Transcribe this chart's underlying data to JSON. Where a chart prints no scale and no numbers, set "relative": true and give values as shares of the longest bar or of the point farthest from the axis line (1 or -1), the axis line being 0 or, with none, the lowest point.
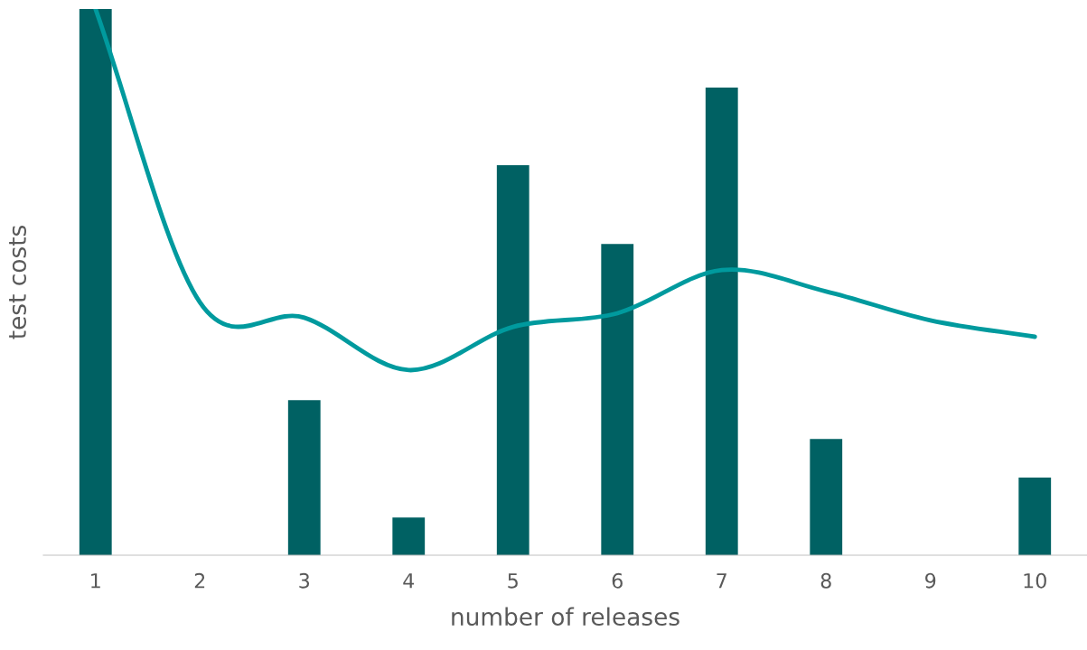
{
  "chart_data": {
    "type": "bar",
    "relative": true,
    "xlabel": "number of releases",
    "ylabel": "test costs",
    "categories": [
      "1",
      "2",
      "3",
      "4",
      "5",
      "6",
      "7",
      "8",
      "9",
      "10"
    ],
    "series": [
      {
        "color": "#006163",
        "values": [
          1.0,
          0,
          0.284,
          0.069,
          0.714,
          0.57,
          0.856,
          0.213,
          0,
          0.142
        ]
      },
      {
        "type": "line",
        "color": "#009a9e",
        "values": [
          1.0,
          0.463,
          0.435,
          0.339,
          0.418,
          0.443,
          0.522,
          0.483,
          0.43,
          0.4
        ]
      }
    ],
    "grid": false,
    "legend": false
  }
}
